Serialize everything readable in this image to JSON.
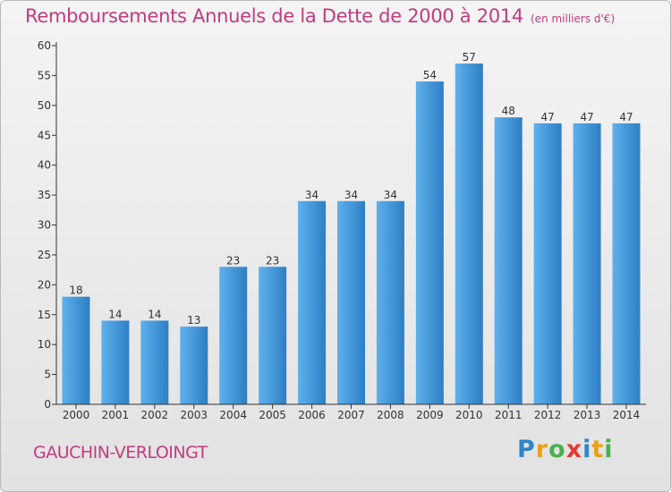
{
  "title": "Remboursements Annuels de la Dette de 2000 à 2014",
  "subtitle": "(en milliers d'€)",
  "commune": "GAUCHIN-VERLOINGT",
  "logo": {
    "letters": [
      "P",
      "r",
      "o",
      "x",
      "i",
      "t",
      "i"
    ]
  },
  "colors": {
    "title": "#c33b7f",
    "bar_light": "#5fb0ec",
    "bar_dark": "#2d7fc4",
    "axis": "#333333"
  },
  "chart_data": {
    "type": "bar",
    "categories": [
      "2000",
      "2001",
      "2002",
      "2003",
      "2004",
      "2005",
      "2006",
      "2007",
      "2008",
      "2009",
      "2010",
      "2011",
      "2012",
      "2013",
      "2014"
    ],
    "values": [
      18,
      14,
      14,
      13,
      23,
      23,
      34,
      34,
      34,
      54,
      57,
      48,
      47,
      47,
      47
    ],
    "ylim": [
      0,
      60
    ],
    "yticks": [
      0,
      5,
      10,
      15,
      20,
      25,
      30,
      35,
      40,
      45,
      50,
      55,
      60
    ],
    "grid": false,
    "data_labels": true
  }
}
